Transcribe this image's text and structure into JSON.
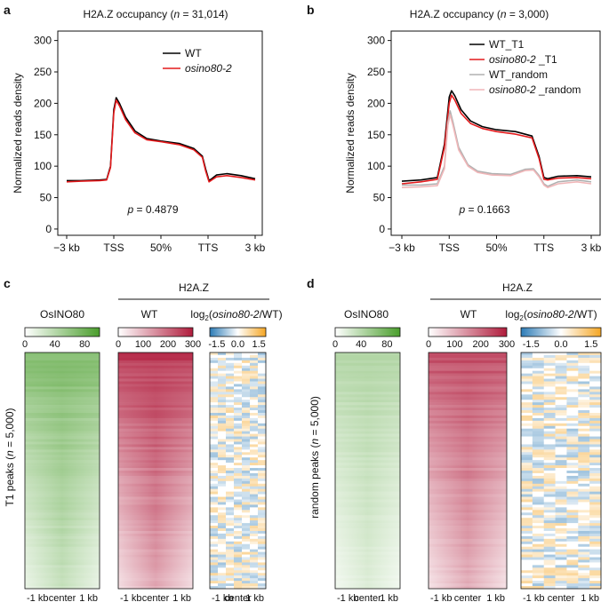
{
  "panels": {
    "a": {
      "letter": "a",
      "title_pre": "H2A.Z occupancy (",
      "title_n": "n",
      "title_post": " = 31,014)",
      "ylabel": "Normalized reads density",
      "pval_p": "p",
      "pval_rest": " = 0.4879",
      "legend": [
        {
          "label": "WT",
          "italic": false,
          "color": "#000000"
        },
        {
          "label": "osino80-2",
          "italic": true,
          "color": "#e41a1c"
        }
      ]
    },
    "b": {
      "letter": "b",
      "title_pre": "H2A.Z occupancy (",
      "title_n": "n",
      "title_post": " = 3,000)",
      "ylabel": "Normalized reads density",
      "pval_p": "p",
      "pval_rest": " = 0.1663",
      "legend": [
        {
          "label": "WT_T1",
          "italic_part": "",
          "color": "#000000"
        },
        {
          "label": "_T1",
          "italic_part": "osino80-2 ",
          "color": "#e41a1c"
        },
        {
          "label": "WT_random",
          "italic_part": "",
          "color": "#b0b0b0"
        },
        {
          "label": "_random",
          "italic_part": "osino80-2 ",
          "color": "#f0b6b8"
        }
      ]
    },
    "c": {
      "letter": "c",
      "group_label": "H2A.Z",
      "col1": "OsINO80",
      "col2": "WT",
      "col3_pre": "log",
      "col3_sub": "2",
      "col3_it": "osino80-2",
      "col3_post": "/WT)",
      "col3_open": "(",
      "row_label_pre": "T1 peaks (",
      "row_label_n": "n",
      "row_label_post": " = 5,000)"
    },
    "d": {
      "letter": "d",
      "group_label": "H2A.Z",
      "col1": "OsINO80",
      "col2": "WT",
      "col3_pre": "log",
      "col3_sub": "2",
      "col3_it": "osino80-2",
      "col3_post": "/WT)",
      "col3_open": "(",
      "row_label_pre": "random peaks (",
      "row_label_n": "n",
      "row_label_post": " = 5,000)"
    }
  },
  "heatmap_scales": {
    "green": {
      "ticks": [
        "0",
        "40",
        "80"
      ],
      "tick_values": [
        0,
        40,
        80
      ],
      "range": [
        0,
        100
      ],
      "color": "#4a9e2c"
    },
    "red": {
      "ticks": [
        "0",
        "100",
        "200",
        "300"
      ],
      "tick_values": [
        0,
        100,
        200,
        300
      ],
      "range": [
        0,
        300
      ],
      "color": "#b01c3c"
    },
    "diverging": {
      "ticks": [
        "-1.5",
        "0.0",
        "1.5"
      ],
      "tick_values": [
        -1.5,
        0,
        1.5
      ],
      "range": [
        -2,
        2
      ],
      "low": "#2c7bb6",
      "high": "#f5a623"
    }
  },
  "heatmap_xticks": [
    "-1 kb",
    "center",
    "1 kb"
  ],
  "chart_data": [
    {
      "type": "line",
      "panel": "a",
      "title": "H2A.Z occupancy (n = 31,014)",
      "ylabel": "Normalized reads density",
      "xlabel": "",
      "ylim": [
        -10,
        315
      ],
      "yticks": [
        0,
        50,
        100,
        150,
        200,
        250,
        300
      ],
      "xticks": [
        0,
        1,
        2,
        3,
        4
      ],
      "xtick_labels": [
        "−3 kb",
        "TSS",
        "50%",
        "TTS",
        "3 kb"
      ],
      "series": [
        {
          "name": "WT",
          "color": "#000000",
          "x": [
            0,
            0.3,
            0.7,
            0.85,
            0.93,
            1.0,
            1.05,
            1.12,
            1.25,
            1.45,
            1.7,
            2.0,
            2.4,
            2.7,
            2.88,
            2.95,
            3.02,
            3.08,
            3.18,
            3.4,
            3.7,
            4.0
          ],
          "y": [
            77,
            77,
            78,
            79,
            100,
            190,
            209,
            200,
            178,
            156,
            144,
            140,
            136,
            128,
            116,
            95,
            77,
            80,
            86,
            88,
            85,
            80
          ]
        },
        {
          "name": "osino80-2",
          "color": "#e41a1c",
          "x": [
            0,
            0.3,
            0.7,
            0.85,
            0.93,
            1.0,
            1.05,
            1.12,
            1.25,
            1.45,
            1.7,
            2.0,
            2.4,
            2.7,
            2.88,
            2.95,
            3.02,
            3.08,
            3.18,
            3.4,
            3.7,
            4.0
          ],
          "y": [
            75,
            76,
            77,
            78,
            98,
            185,
            205,
            196,
            174,
            153,
            142,
            139,
            134,
            126,
            114,
            92,
            75,
            78,
            83,
            85,
            82,
            78
          ]
        }
      ]
    },
    {
      "type": "line",
      "panel": "b",
      "title": "H2A.Z occupancy (n = 3,000)",
      "ylabel": "Normalized reads density",
      "xlabel": "",
      "ylim": [
        -10,
        315
      ],
      "yticks": [
        0,
        50,
        100,
        150,
        200,
        250,
        300
      ],
      "xticks": [
        0,
        1,
        2,
        3,
        4
      ],
      "xtick_labels": [
        "−3 kb",
        "TSS",
        "50%",
        "TTS",
        "3 kb"
      ],
      "series": [
        {
          "name": "WT_T1",
          "color": "#000000",
          "x": [
            0,
            0.4,
            0.75,
            0.9,
            1.0,
            1.05,
            1.12,
            1.25,
            1.45,
            1.7,
            2.0,
            2.4,
            2.75,
            2.9,
            3.0,
            3.08,
            3.3,
            3.7,
            4.0
          ],
          "y": [
            76,
            78,
            82,
            135,
            210,
            220,
            212,
            190,
            172,
            163,
            158,
            155,
            148,
            115,
            82,
            80,
            84,
            85,
            83
          ]
        },
        {
          "name": "osino80-2 _T1",
          "color": "#e41a1c",
          "x": [
            0,
            0.4,
            0.75,
            0.9,
            1.0,
            1.05,
            1.12,
            1.25,
            1.45,
            1.7,
            2.0,
            2.4,
            2.75,
            2.9,
            3.0,
            3.08,
            3.3,
            3.7,
            4.0
          ],
          "y": [
            72,
            75,
            79,
            130,
            200,
            213,
            205,
            184,
            168,
            160,
            155,
            151,
            145,
            112,
            79,
            78,
            81,
            82,
            80
          ]
        },
        {
          "name": "WT_random",
          "color": "#b0b0b0",
          "x": [
            0,
            0.4,
            0.75,
            0.9,
            0.97,
            1.02,
            1.08,
            1.2,
            1.4,
            1.6,
            1.9,
            2.3,
            2.6,
            2.78,
            2.9,
            3.0,
            3.08,
            3.3,
            3.7,
            4.0
          ],
          "y": [
            70,
            70,
            72,
            100,
            170,
            188,
            170,
            130,
            102,
            92,
            88,
            87,
            95,
            96,
            85,
            72,
            68,
            75,
            78,
            75
          ]
        },
        {
          "name": "osino80-2 _random",
          "color": "#f0b6b8",
          "x": [
            0,
            0.4,
            0.75,
            0.9,
            0.97,
            1.02,
            1.08,
            1.2,
            1.4,
            1.6,
            1.9,
            2.3,
            2.6,
            2.78,
            2.9,
            3.0,
            3.08,
            3.3,
            3.7,
            4.0
          ],
          "y": [
            66,
            67,
            69,
            96,
            165,
            182,
            165,
            126,
            100,
            90,
            86,
            85,
            93,
            94,
            83,
            70,
            66,
            72,
            75,
            72
          ]
        }
      ]
    },
    {
      "type": "heatmap",
      "panel": "c",
      "rows": 5000,
      "columns": [
        "OsINO80",
        "H2A.Z WT",
        "log2(osino80-2/WT)"
      ],
      "xtick_labels": [
        "-1 kb",
        "center",
        "1 kb"
      ]
    },
    {
      "type": "heatmap",
      "panel": "d",
      "rows": 5000,
      "columns": [
        "OsINO80",
        "H2A.Z WT",
        "log2(osino80-2/WT)"
      ],
      "xtick_labels": [
        "-1 kb",
        "center",
        "1 kb"
      ]
    }
  ]
}
